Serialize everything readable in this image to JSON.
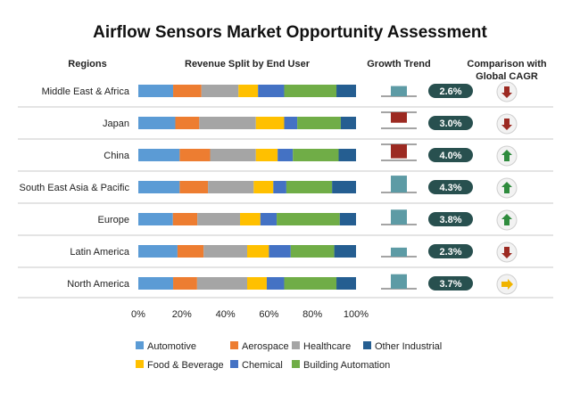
{
  "chart_data": {
    "type": "bar",
    "title": "Airflow Sensors Market Opportunity Assessment",
    "headers": {
      "regions": "Regions",
      "revenue_split": "Revenue Split by End User",
      "growth_trend": "Growth Trend",
      "comparison_line1": "Comparison with",
      "comparison_line2": "Global CAGR"
    },
    "x_ticks": [
      "0%",
      "20%",
      "40%",
      "60%",
      "80%",
      "100%"
    ],
    "xlim": [
      0,
      100
    ],
    "series_names": [
      "Automotive",
      "Aerospace",
      "Healthcare",
      "Food & Beverage",
      "Chemical",
      "Building Automation",
      "Other Industrial"
    ],
    "series_colors": [
      "#5b9bd5",
      "#ed7d31",
      "#a5a5a5",
      "#ffc000",
      "#4472c4",
      "#70ad47",
      "#255e91"
    ],
    "legend_rows": [
      [
        "Automotive",
        "Aerospace",
        "Healthcare",
        "Other Industrial"
      ],
      [
        "Food & Beverage",
        "Chemical",
        "Building Automation"
      ]
    ],
    "rows": [
      {
        "region": "Middle East & Africa",
        "values": [
          16,
          13,
          17,
          9,
          12,
          24,
          9
        ],
        "trend": "up",
        "trend_value": 2.6,
        "cagr": "2.6%",
        "comparison": "below"
      },
      {
        "region": "Japan",
        "values": [
          17,
          11,
          26,
          13,
          6,
          20,
          7
        ],
        "trend": "down",
        "trend_value": 3.0,
        "cagr": "3.0%",
        "comparison": "below"
      },
      {
        "region": "China",
        "values": [
          19,
          14,
          21,
          10,
          7,
          21,
          8
        ],
        "trend": "down",
        "trend_value": 4.0,
        "cagr": "4.0%",
        "comparison": "above"
      },
      {
        "region": "South East Asia & Pacific",
        "values": [
          19,
          13,
          21,
          9,
          6,
          21,
          11
        ],
        "trend": "up",
        "trend_value": 4.3,
        "cagr": "4.3%",
        "comparison": "above"
      },
      {
        "region": "Europe",
        "values": [
          17,
          12,
          21,
          10,
          8,
          31,
          8
        ],
        "trend": "up",
        "trend_value": 3.8,
        "cagr": "3.8%",
        "comparison": "above"
      },
      {
        "region": "Latin America",
        "values": [
          18,
          12,
          20,
          10,
          10,
          20,
          10
        ],
        "trend": "up",
        "trend_value": 2.3,
        "cagr": "2.3%",
        "comparison": "below"
      },
      {
        "region": "North America",
        "values": [
          16,
          11,
          23,
          9,
          8,
          24,
          9
        ],
        "trend": "up",
        "trend_value": 3.7,
        "cagr": "3.7%",
        "comparison": "neutral"
      }
    ]
  }
}
